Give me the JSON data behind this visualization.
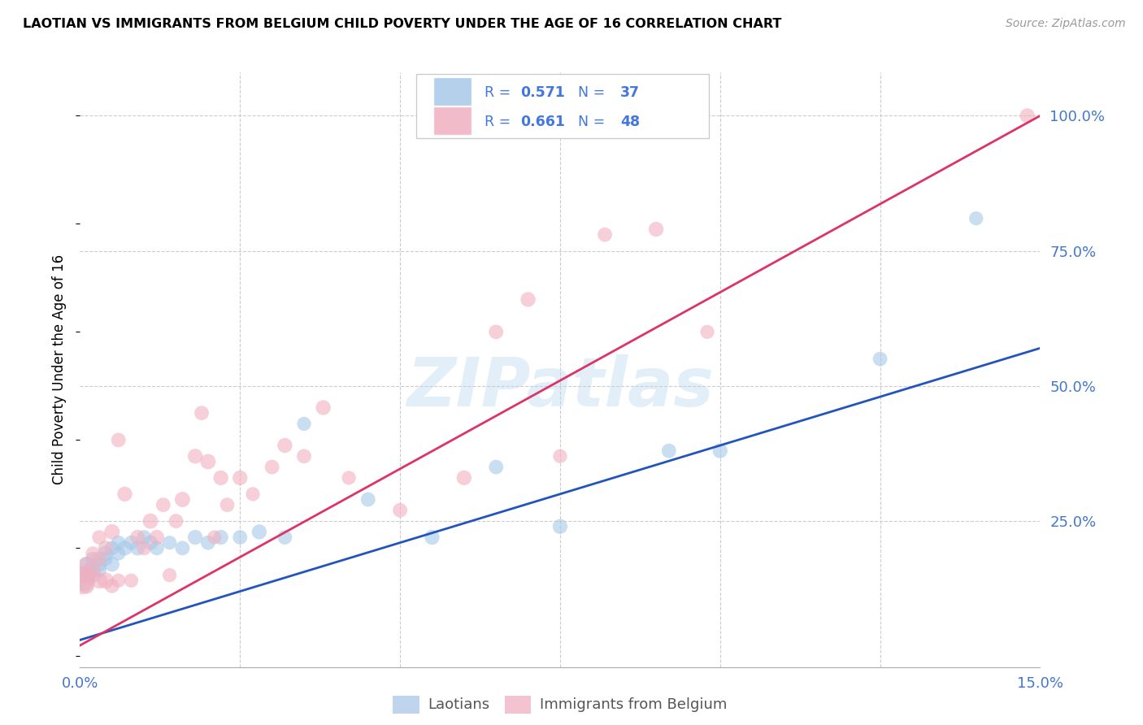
{
  "title": "LAOTIAN VS IMMIGRANTS FROM BELGIUM CHILD POVERTY UNDER THE AGE OF 16 CORRELATION CHART",
  "source": "Source: ZipAtlas.com",
  "ylabel": "Child Poverty Under the Age of 16",
  "xlim": [
    0.0,
    0.15
  ],
  "ylim": [
    -0.02,
    1.08
  ],
  "yticks_right": [
    0.25,
    0.5,
    0.75,
    1.0
  ],
  "ytick_labels_right": [
    "25.0%",
    "50.0%",
    "75.0%",
    "100.0%"
  ],
  "laotian_color": "#A8C8E8",
  "belgium_color": "#F0B0C0",
  "laotian_R": "0.571",
  "laotian_N": "37",
  "belgium_R": "0.661",
  "belgium_N": "48",
  "laotian_line_color": "#2255BB",
  "belgium_line_color": "#DD3366",
  "legend_text_color": "#4477DD",
  "watermark": "ZIPatlas",
  "laotian_x": [
    0.0005,
    0.001,
    0.001,
    0.0015,
    0.002,
    0.002,
    0.003,
    0.003,
    0.004,
    0.004,
    0.005,
    0.005,
    0.006,
    0.006,
    0.007,
    0.008,
    0.009,
    0.01,
    0.011,
    0.012,
    0.014,
    0.016,
    0.018,
    0.02,
    0.022,
    0.025,
    0.028,
    0.032,
    0.035,
    0.045,
    0.055,
    0.065,
    0.075,
    0.092,
    0.1,
    0.125,
    0.14
  ],
  "laotian_y": [
    0.14,
    0.15,
    0.17,
    0.16,
    0.15,
    0.18,
    0.17,
    0.16,
    0.18,
    0.19,
    0.17,
    0.2,
    0.19,
    0.21,
    0.2,
    0.21,
    0.2,
    0.22,
    0.21,
    0.2,
    0.21,
    0.2,
    0.22,
    0.21,
    0.22,
    0.22,
    0.23,
    0.22,
    0.43,
    0.29,
    0.22,
    0.35,
    0.24,
    0.38,
    0.38,
    0.55,
    0.81
  ],
  "laotian_sizes": [
    350,
    200,
    180,
    170,
    200,
    160,
    180,
    170,
    160,
    190,
    175,
    165,
    155,
    165,
    175,
    165,
    175,
    165,
    175,
    165,
    155,
    165,
    175,
    165,
    175,
    165,
    175,
    165,
    155,
    165,
    175,
    165,
    175,
    165,
    175,
    165,
    155
  ],
  "belgium_x": [
    0.0002,
    0.0005,
    0.001,
    0.001,
    0.0015,
    0.002,
    0.002,
    0.003,
    0.003,
    0.003,
    0.004,
    0.004,
    0.005,
    0.005,
    0.006,
    0.006,
    0.007,
    0.008,
    0.009,
    0.01,
    0.011,
    0.012,
    0.013,
    0.014,
    0.015,
    0.016,
    0.018,
    0.019,
    0.02,
    0.021,
    0.022,
    0.023,
    0.025,
    0.027,
    0.03,
    0.032,
    0.035,
    0.038,
    0.042,
    0.05,
    0.06,
    0.065,
    0.07,
    0.075,
    0.082,
    0.09,
    0.098,
    0.148
  ],
  "belgium_y": [
    0.14,
    0.15,
    0.13,
    0.17,
    0.15,
    0.16,
    0.19,
    0.14,
    0.18,
    0.22,
    0.14,
    0.2,
    0.13,
    0.23,
    0.14,
    0.4,
    0.3,
    0.14,
    0.22,
    0.2,
    0.25,
    0.22,
    0.28,
    0.15,
    0.25,
    0.29,
    0.37,
    0.45,
    0.36,
    0.22,
    0.33,
    0.28,
    0.33,
    0.3,
    0.35,
    0.39,
    0.37,
    0.46,
    0.33,
    0.27,
    0.33,
    0.6,
    0.66,
    0.37,
    0.78,
    0.79,
    0.6,
    1.0
  ],
  "belgium_sizes": [
    600,
    250,
    200,
    180,
    170,
    200,
    160,
    200,
    175,
    160,
    210,
    175,
    165,
    185,
    155,
    165,
    175,
    155,
    175,
    165,
    185,
    175,
    165,
    155,
    165,
    185,
    175,
    165,
    185,
    155,
    175,
    165,
    175,
    155,
    165,
    175,
    165,
    175,
    155,
    165,
    175,
    165,
    175,
    155,
    165,
    175,
    155,
    175
  ],
  "laotian_line_x0": 0.0,
  "laotian_line_y0": 0.03,
  "laotian_line_x1": 0.15,
  "laotian_line_y1": 0.57,
  "belgium_line_x0": 0.0,
  "belgium_line_y0": 0.02,
  "belgium_line_x1": 0.15,
  "belgium_line_y1": 1.0
}
